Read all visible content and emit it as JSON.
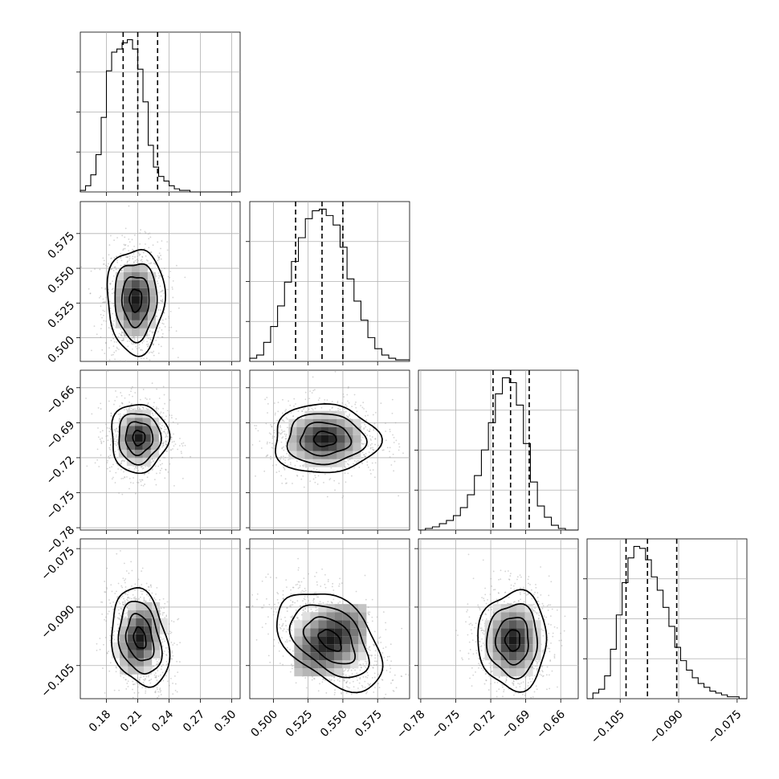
{
  "chart_data": {
    "type": "corner",
    "title": "",
    "grid": true,
    "parameters": [
      {
        "label": "",
        "median": 0.21,
        "quantiles": [
          0.196,
          0.21,
          0.229
        ],
        "range": [
          0.155,
          0.308
        ],
        "ticks": [
          0.18,
          0.21,
          0.24,
          0.27,
          0.3
        ],
        "tick_labels": [
          "0.18",
          "0.21",
          "0.24",
          "0.27",
          "0.30"
        ]
      },
      {
        "label": "",
        "median": 0.535,
        "quantiles": [
          0.516,
          0.535,
          0.55
        ],
        "range": [
          0.483,
          0.598
        ],
        "ticks": [
          0.5,
          0.525,
          0.55,
          0.575
        ],
        "tick_labels": [
          "0.500",
          "0.525",
          "0.550",
          "0.575"
        ]
      },
      {
        "label": "",
        "median": -0.703,
        "quantiles": [
          -0.718,
          -0.703,
          -0.687
        ],
        "range": [
          -0.782,
          -0.645
        ],
        "ticks": [
          -0.78,
          -0.75,
          -0.72,
          -0.69,
          -0.66
        ],
        "tick_labels": [
          "−0.78",
          "−0.75",
          "−0.72",
          "−0.69",
          "−0.66"
        ]
      },
      {
        "label": "",
        "median": -0.098,
        "quantiles": [
          -0.1035,
          -0.098,
          -0.0905
        ],
        "range": [
          -0.1135,
          -0.0725
        ],
        "ticks": [
          -0.105,
          -0.09,
          -0.075
        ],
        "tick_labels": [
          "−0.105",
          "−0.090",
          "−0.075"
        ]
      }
    ],
    "histograms": [
      {
        "param": 0,
        "bins": [
          0.155,
          0.16,
          0.165,
          0.17,
          0.175,
          0.18,
          0.185,
          0.19,
          0.195,
          0.2,
          0.205,
          0.21,
          0.215,
          0.22,
          0.225,
          0.23,
          0.235,
          0.24,
          0.245,
          0.25,
          0.255,
          0.26,
          0.265,
          0.27,
          0.275,
          0.28,
          0.285,
          0.29,
          0.295,
          0.3,
          0.305
        ],
        "counts": [
          1,
          4,
          11,
          24,
          48,
          78,
          90,
          92,
          96,
          98,
          92,
          79,
          58,
          30,
          16,
          10,
          7,
          4,
          2,
          1,
          1,
          0,
          0,
          0,
          0,
          0,
          0,
          0,
          0,
          0
        ]
      },
      {
        "param": 1,
        "bins": [
          0.483,
          0.488,
          0.493,
          0.498,
          0.503,
          0.508,
          0.513,
          0.518,
          0.523,
          0.528,
          0.533,
          0.538,
          0.543,
          0.548,
          0.553,
          0.558,
          0.563,
          0.568,
          0.573,
          0.578,
          0.583,
          0.588,
          0.593,
          0.598
        ],
        "counts": [
          2,
          4,
          12,
          22,
          35,
          50,
          63,
          78,
          90,
          95,
          96,
          92,
          86,
          72,
          52,
          38,
          26,
          15,
          8,
          4,
          2,
          1,
          1
        ]
      },
      {
        "param": 2,
        "bins": [
          -0.782,
          -0.776,
          -0.77,
          -0.764,
          -0.758,
          -0.752,
          -0.746,
          -0.74,
          -0.734,
          -0.728,
          -0.722,
          -0.716,
          -0.71,
          -0.704,
          -0.698,
          -0.692,
          -0.686,
          -0.68,
          -0.674,
          -0.668,
          -0.662,
          -0.656,
          -0.65,
          -0.645
        ],
        "counts": [
          0,
          1,
          2,
          4,
          6,
          9,
          14,
          22,
          34,
          50,
          67,
          85,
          95,
          92,
          78,
          54,
          30,
          15,
          8,
          3,
          1,
          0,
          0
        ]
      },
      {
        "param": 3,
        "bins": [
          -0.1135,
          -0.112,
          -0.1105,
          -0.109,
          -0.1075,
          -0.106,
          -0.1045,
          -0.103,
          -0.1015,
          -0.1,
          -0.0985,
          -0.097,
          -0.0955,
          -0.094,
          -0.0925,
          -0.091,
          -0.0895,
          -0.088,
          -0.0865,
          -0.085,
          -0.0835,
          -0.082,
          -0.0805,
          -0.079,
          -0.0775,
          -0.076,
          -0.0745,
          -0.0725
        ],
        "counts": [
          0,
          3,
          5,
          12,
          26,
          44,
          61,
          74,
          80,
          79,
          73,
          64,
          57,
          48,
          38,
          27,
          20,
          15,
          11,
          8,
          6,
          4,
          3,
          2,
          1,
          1,
          0
        ]
      }
    ],
    "pair_peaks": [
      {
        "x_param": 0,
        "y_param": 1,
        "peak": [
          0.208,
          0.527
        ]
      },
      {
        "x_param": 0,
        "y_param": 2,
        "peak": [
          0.211,
          -0.703
        ]
      },
      {
        "x_param": 1,
        "y_param": 2,
        "peak": [
          0.537,
          -0.704
        ]
      },
      {
        "x_param": 0,
        "y_param": 3,
        "peak": [
          0.212,
          -0.098
        ]
      },
      {
        "x_param": 1,
        "y_param": 3,
        "peak": [
          0.541,
          -0.0985
        ]
      },
      {
        "x_param": 2,
        "y_param": 3,
        "peak": [
          -0.701,
          -0.0985
        ]
      }
    ]
  }
}
